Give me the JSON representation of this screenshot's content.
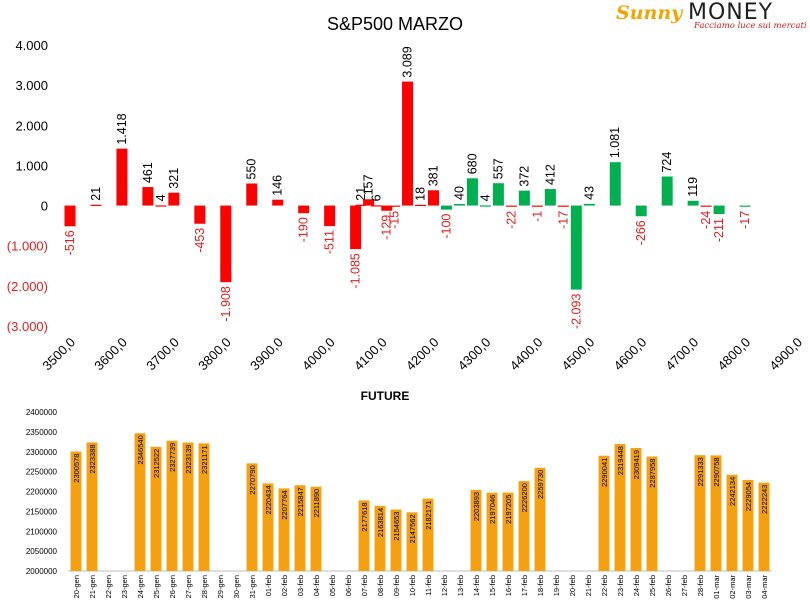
{
  "logo": {
    "brand_part1": "Sunny",
    "brand_part2": "MONEY",
    "tagline": "Facciamo luce sui mercati"
  },
  "colors": {
    "positive": "#00b050",
    "negative": "#ff0000",
    "negative_label": "#e02020",
    "future_bar": "#f5a00f",
    "axis": "#000000",
    "grid_line": "#bfbfbf"
  },
  "chart_data": [
    {
      "type": "bar",
      "title": "S&P500 MARZO",
      "xlabel": "",
      "ylabel": "",
      "ylim": [
        -3000,
        4000
      ],
      "y_ticks": [
        "4.000",
        "3.000",
        "2.000",
        "1.000",
        "0",
        "(1.000)",
        "(2.000)",
        "(3.000)"
      ],
      "x_tick_labels": [
        "3500,0",
        "3600,0",
        "3700,0",
        "3800,0",
        "3900,0",
        "4000,0",
        "4100,0",
        "4200,0",
        "4300,0",
        "4400,0",
        "4500,0",
        "4600,0",
        "4700,0",
        "4800,0",
        "4900,0"
      ],
      "bars": [
        {
          "x": 3500,
          "value": -516,
          "label": "-516",
          "color": "red"
        },
        {
          "x": 3550,
          "value": 21,
          "label": "21",
          "color": "red"
        },
        {
          "x": 3600,
          "value": 1418,
          "label": "1.418",
          "color": "red"
        },
        {
          "x": 3650,
          "value": 461,
          "label": "461",
          "color": "red"
        },
        {
          "x": 3675,
          "value": 4,
          "label": "4",
          "color": "red"
        },
        {
          "x": 3700,
          "value": 321,
          "label": "321",
          "color": "red"
        },
        {
          "x": 3750,
          "value": -453,
          "label": "-453",
          "color": "red"
        },
        {
          "x": 3800,
          "value": -1908,
          "label": "-1.908",
          "color": "red"
        },
        {
          "x": 3850,
          "value": 550,
          "label": "550",
          "color": "red"
        },
        {
          "x": 3900,
          "value": 146,
          "label": "146",
          "color": "red"
        },
        {
          "x": 3950,
          "value": -190,
          "label": "-190",
          "color": "red"
        },
        {
          "x": 4000,
          "value": -511,
          "label": "-511",
          "color": "red"
        },
        {
          "x": 4050,
          "value": -1085,
          "label": "-1.085",
          "color": "red"
        },
        {
          "x": 4060,
          "value": 21,
          "label": "21",
          "color": "red"
        },
        {
          "x": 4075,
          "value": 157,
          "label": "157",
          "color": "red"
        },
        {
          "x": 4090,
          "value": 6,
          "label": "6",
          "color": "red"
        },
        {
          "x": 4110,
          "value": -129,
          "label": "-129",
          "color": "red"
        },
        {
          "x": 4125,
          "value": -15,
          "label": "-15",
          "color": "red"
        },
        {
          "x": 4150,
          "value": 3089,
          "label": "3.089",
          "color": "red"
        },
        {
          "x": 4175,
          "value": 18,
          "label": "18",
          "color": "red"
        },
        {
          "x": 4200,
          "value": 381,
          "label": "381",
          "color": "red"
        },
        {
          "x": 4225,
          "value": -100,
          "label": "-100",
          "color": "green"
        },
        {
          "x": 4250,
          "value": 40,
          "label": "40",
          "color": "green"
        },
        {
          "x": 4275,
          "value": 680,
          "label": "680",
          "color": "green"
        },
        {
          "x": 4300,
          "value": 4,
          "label": "4",
          "color": "green"
        },
        {
          "x": 4325,
          "value": 557,
          "label": "557",
          "color": "green"
        },
        {
          "x": 4350,
          "value": -22,
          "label": "-22",
          "color": "red"
        },
        {
          "x": 4375,
          "value": 372,
          "label": "372",
          "color": "green"
        },
        {
          "x": 4400,
          "value": -1,
          "label": "-1",
          "color": "red"
        },
        {
          "x": 4425,
          "value": 412,
          "label": "412",
          "color": "green"
        },
        {
          "x": 4450,
          "value": -17,
          "label": "-17",
          "color": "red"
        },
        {
          "x": 4475,
          "value": -2093,
          "label": "-2.093",
          "color": "green"
        },
        {
          "x": 4500,
          "value": 43,
          "label": "43",
          "color": "green"
        },
        {
          "x": 4550,
          "value": 1081,
          "label": "1.081",
          "color": "green"
        },
        {
          "x": 4600,
          "value": -266,
          "label": "-266",
          "color": "green"
        },
        {
          "x": 4650,
          "value": 724,
          "label": "724",
          "color": "green"
        },
        {
          "x": 4700,
          "value": 119,
          "label": "119",
          "color": "green"
        },
        {
          "x": 4725,
          "value": -24,
          "label": "-24",
          "color": "red"
        },
        {
          "x": 4750,
          "value": -211,
          "label": "-211",
          "color": "green"
        },
        {
          "x": 4800,
          "value": -17,
          "label": "-17",
          "color": "green"
        }
      ]
    },
    {
      "type": "bar",
      "title": "FUTURE",
      "xlabel": "",
      "ylabel": "",
      "ylim": [
        2000000,
        2400000
      ],
      "y_ticks": [
        "2400000",
        "2350000",
        "2300000",
        "2250000",
        "2200000",
        "2150000",
        "2100000",
        "2050000",
        "2000000"
      ],
      "categories": [
        "20-gen",
        "21-gen",
        "22-gen",
        "23-gen",
        "24-gen",
        "25-gen",
        "26-gen",
        "27-gen",
        "28-gen",
        "29-gen",
        "30-gen",
        "31-gen",
        "01-feb",
        "02-feb",
        "03-feb",
        "04-feb",
        "05-feb",
        "06-feb",
        "07-feb",
        "08-feb",
        "09-feb",
        "10-feb",
        "11-feb",
        "12-feb",
        "13-feb",
        "14-feb",
        "15-feb",
        "16-feb",
        "17-feb",
        "18-feb",
        "19-feb",
        "20-feb",
        "21-feb",
        "22-feb",
        "23-feb",
        "24-feb",
        "25-feb",
        "26-feb",
        "27-feb",
        "28-feb",
        "01-mar",
        "02-mar",
        "03-mar",
        "04-mar"
      ],
      "values": [
        2300578,
        2323388,
        null,
        null,
        2346540,
        2312522,
        2327739,
        2323139,
        2321171,
        null,
        null,
        2270790,
        2220434,
        2207764,
        2215847,
        2211890,
        null,
        null,
        2177618,
        2163814,
        2154653,
        2147562,
        2182171,
        null,
        null,
        2203893,
        2197046,
        2197205,
        2226200,
        2259730,
        null,
        null,
        null,
        2290041,
        2319448,
        2309419,
        2287958,
        null,
        null,
        2291333,
        2290758,
        2242134,
        2229054,
        2222243
      ]
    }
  ]
}
